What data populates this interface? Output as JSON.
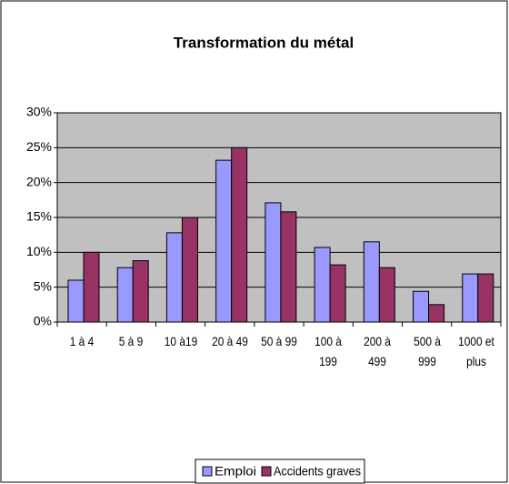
{
  "chart_data": {
    "type": "bar",
    "title": "Transformation du métal",
    "categories": [
      "1 à 4",
      "5 à 9",
      "10 à19",
      "20 à 49",
      "50 à 99",
      "100 à 199",
      "200 à 499",
      "500 à 999",
      "1000 et plus"
    ],
    "series": [
      {
        "name": "Emploi",
        "color": "#9999ff",
        "values": [
          6,
          7.8,
          12.8,
          23.2,
          17.1,
          10.7,
          11.5,
          4.4,
          6.9
        ]
      },
      {
        "name": "Accidents graves",
        "color": "#993366",
        "values": [
          10,
          8.8,
          15,
          25,
          15.8,
          8.2,
          7.8,
          2.5,
          6.9
        ]
      }
    ],
    "ylim": [
      0,
      30
    ],
    "yticks": [
      {
        "value": 0,
        "label": "0%"
      },
      {
        "value": 5,
        "label": "5%"
      },
      {
        "value": 10,
        "label": "10%"
      },
      {
        "value": 15,
        "label": "15%"
      },
      {
        "value": 20,
        "label": "20%"
      },
      {
        "value": 25,
        "label": "25%"
      },
      {
        "value": 30,
        "label": "30%"
      }
    ],
    "grid": true,
    "legend": "bottom"
  }
}
